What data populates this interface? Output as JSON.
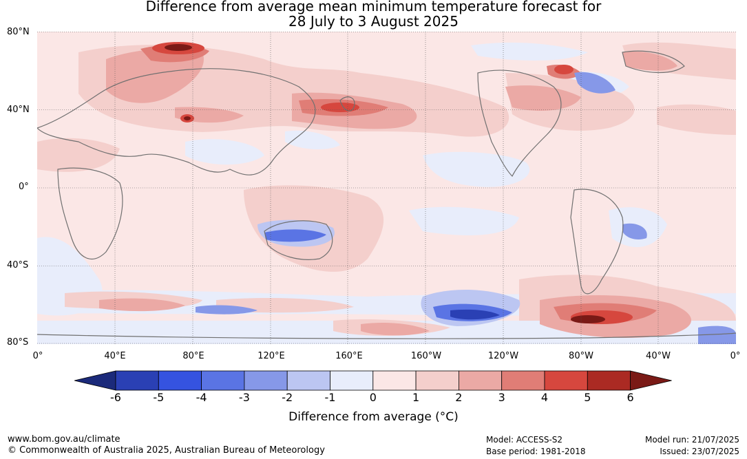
{
  "title_line1": "Difference from average mean minimum temperature forecast for",
  "title_line2": "28 July to 3 August 2025",
  "lat_labels": [
    "80°N",
    "40°N",
    "0°",
    "40°S",
    "80°S"
  ],
  "lon_labels": [
    "0°",
    "40°E",
    "80°E",
    "120°E",
    "160°E",
    "160°W",
    "120°W",
    "80°W",
    "40°W",
    "0°"
  ],
  "colorbar": {
    "ticks": [
      "-6",
      "-5",
      "-4",
      "-3",
      "-2",
      "-1",
      "0",
      "1",
      "2",
      "3",
      "4",
      "5",
      "6"
    ],
    "colors": [
      "#1b2a7a",
      "#2a40b4",
      "#3553e0",
      "#5a74e4",
      "#8698e8",
      "#bcc6f2",
      "#e8edfb",
      "#fbe7e6",
      "#f4cfcc",
      "#eba9a5",
      "#e07d76",
      "#d6473e",
      "#ab2a23",
      "#7a1a16"
    ],
    "label": "Difference from average (°C)"
  },
  "footer": {
    "website": "www.bom.gov.au/climate",
    "copyright": "© Commonwealth of Australia 2025, Australian Bureau of Meteorology",
    "model": "Model: ACCESS-S2",
    "base_period": "Base period: 1981-2018",
    "model_run": "Model run: 21/07/2025",
    "issued": "Issued: 23/07/2025"
  }
}
